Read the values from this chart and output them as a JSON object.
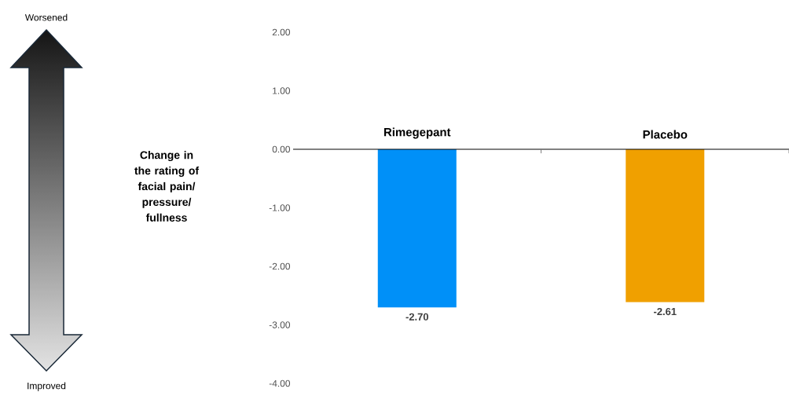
{
  "chart_data": {
    "type": "bar",
    "categories": [
      "Rimegepant",
      "Placebo"
    ],
    "values": [
      -2.7,
      -2.61
    ],
    "colors": [
      "#0090f8",
      "#f0a000"
    ],
    "value_labels": [
      "-2.70",
      "-2.61"
    ],
    "ylim": [
      -4,
      2
    ],
    "yticks": [
      {
        "value": -4,
        "label": "-4.00"
      },
      {
        "value": -3,
        "label": "-3.00"
      },
      {
        "value": -2,
        "label": "-2.00"
      },
      {
        "value": -1,
        "label": "-1.00"
      },
      {
        "value": 0,
        "label": "0.00"
      },
      {
        "value": 1,
        "label": "1.00"
      },
      {
        "value": 2,
        "label": "2.00"
      }
    ],
    "annotations": [
      "Worsened",
      "Improved",
      "Change in the rating of facial pain/ pressure/ fullness"
    ]
  }
}
